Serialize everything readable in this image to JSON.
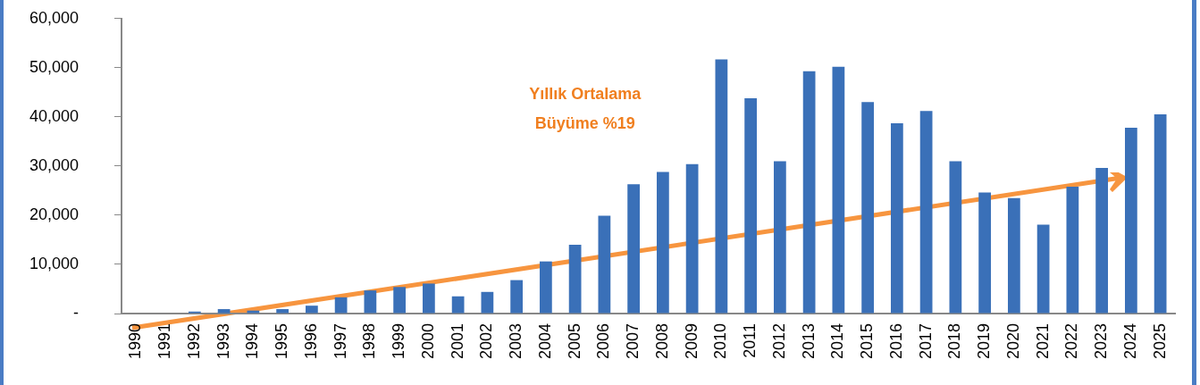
{
  "chart_data": {
    "type": "bar",
    "categories": [
      "1990",
      "1991",
      "1992",
      "1993",
      "1994",
      "1995",
      "1996",
      "1997",
      "1998",
      "1999",
      "2000",
      "2001",
      "2002",
      "2003",
      "2004",
      "2005",
      "2006",
      "2007",
      "2008",
      "2009",
      "2010",
      "2011",
      "2012",
      "2013",
      "2014",
      "2015",
      "2016",
      "2017",
      "2018",
      "2019",
      "2020",
      "2021",
      "2022",
      "2023",
      "2024",
      "2025"
    ],
    "series": [
      {
        "color": "#3a70b8",
        "values": [
          0,
          0,
          400,
          900,
          600,
          900,
          1600,
          3300,
          4700,
          5400,
          6100,
          3500,
          4400,
          6800,
          10600,
          14000,
          19900,
          26300,
          28800,
          30400,
          51700,
          43800,
          31000,
          49300,
          50200,
          43000,
          38700,
          41200,
          31000,
          24600,
          23500,
          18100,
          25800,
          29600,
          37800,
          40500
        ]
      }
    ],
    "ylim": [
      0,
      60000
    ],
    "yticks": [
      {
        "value": 0,
        "label": "-"
      },
      {
        "value": 10000,
        "label": "10,000"
      },
      {
        "value": 20000,
        "label": "20,000"
      },
      {
        "value": 30000,
        "label": "30,000"
      },
      {
        "value": 40000,
        "label": "40,000"
      },
      {
        "value": 50000,
        "label": "50,000"
      },
      {
        "value": 60000,
        "label": "60,000"
      }
    ],
    "grid": false,
    "legend": false,
    "annotations": [
      "Yıllık Ortalama\nBüyüme %19"
    ]
  }
}
